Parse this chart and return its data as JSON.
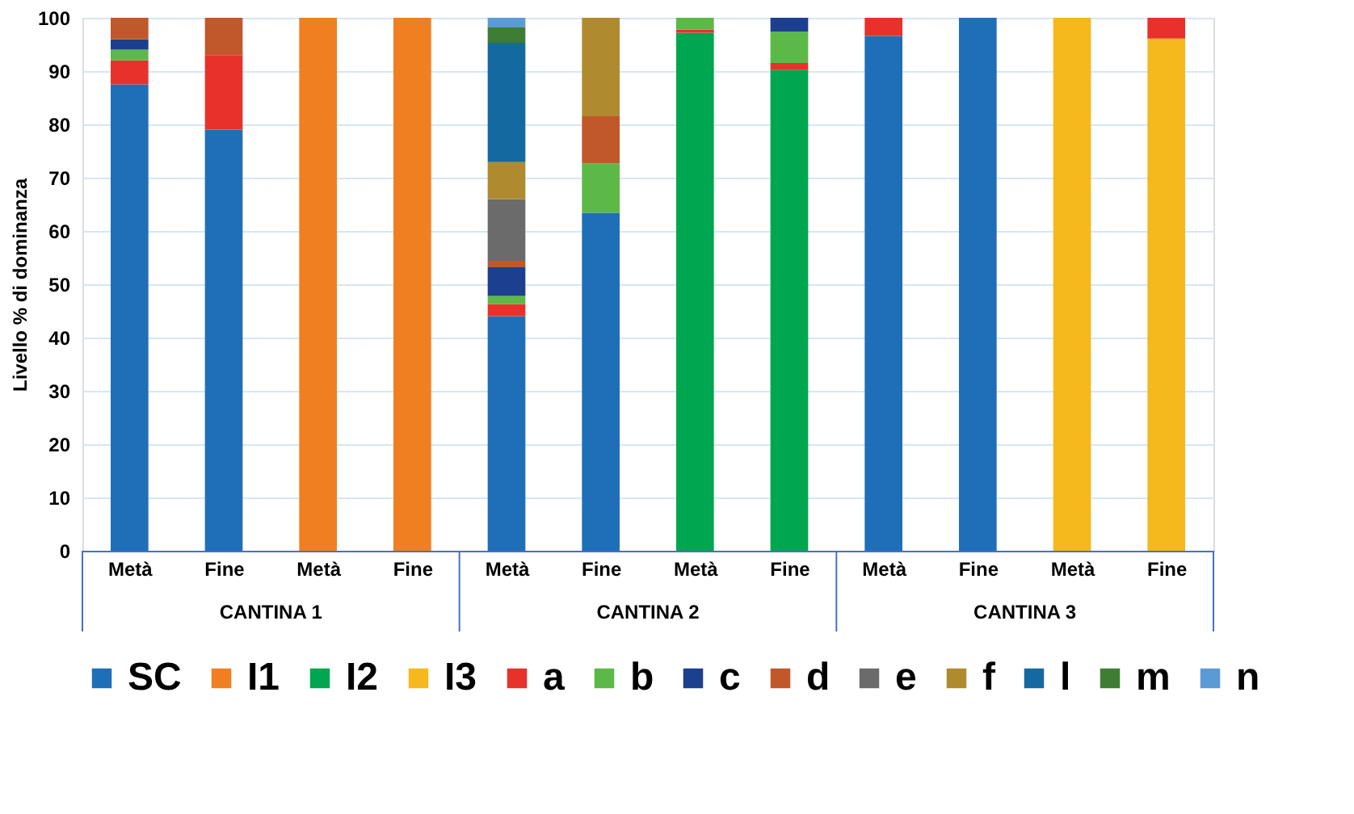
{
  "chart_data": {
    "type": "bar",
    "stacked": true,
    "ylabel": "Livello % di dominanza",
    "categories": [
      "Metà",
      "Fine",
      "Metà",
      "Fine",
      "Metà",
      "Fine",
      "Metà",
      "Fine",
      "Metà",
      "Fine",
      "Metà",
      "Fine"
    ],
    "annotations": [
      "CANTINA 1",
      "CANTINA 2",
      "CANTINA 3"
    ],
    "ylim": [
      0,
      100
    ],
    "yticks": [
      0,
      10,
      20,
      30,
      40,
      50,
      60,
      70,
      80,
      90,
      100
    ],
    "grid": "y",
    "legend": "bottom",
    "series": [
      {
        "name": "SC",
        "color": "#1f6fb8",
        "values": [
          87.5,
          79,
          null,
          null,
          44,
          63.4,
          null,
          null,
          96.6,
          100,
          null,
          null
        ]
      },
      {
        "name": "I1",
        "color": "#f07f22",
        "values": [
          null,
          null,
          100,
          100,
          null,
          null,
          null,
          null,
          null,
          null,
          null,
          null
        ]
      },
      {
        "name": "I2",
        "color": "#00a650",
        "values": [
          null,
          null,
          null,
          null,
          null,
          null,
          97.2,
          90.2,
          null,
          null,
          null,
          null
        ]
      },
      {
        "name": "I3",
        "color": "#f5b81d",
        "values": [
          null,
          null,
          null,
          null,
          null,
          null,
          null,
          null,
          null,
          null,
          100,
          96.1
        ]
      },
      {
        "name": "a",
        "color": "#e8312a",
        "values": [
          4.5,
          14,
          null,
          null,
          2.3,
          null,
          0.6,
          1.3,
          3.4,
          null,
          null,
          3.9
        ]
      },
      {
        "name": "b",
        "color": "#5cb947",
        "values": [
          2,
          null,
          null,
          null,
          1.5,
          9.3,
          2.2,
          5.9,
          null,
          null,
          null,
          null
        ]
      },
      {
        "name": "c",
        "color": "#1c3f8f",
        "values": [
          2,
          null,
          null,
          null,
          5.4,
          null,
          null,
          2.6,
          null,
          null,
          null,
          null
        ]
      },
      {
        "name": "d",
        "color": "#c0582a",
        "values": [
          4,
          7,
          null,
          null,
          1.2,
          8.8,
          null,
          null,
          null,
          null,
          null,
          null
        ]
      },
      {
        "name": "e",
        "color": "#6b6b6b",
        "values": [
          null,
          null,
          null,
          null,
          11.6,
          null,
          null,
          null,
          null,
          null,
          null,
          null
        ]
      },
      {
        "name": "f",
        "color": "#b08a2e",
        "values": [
          null,
          null,
          null,
          null,
          6.9,
          18.5,
          null,
          null,
          null,
          null,
          null,
          null
        ]
      },
      {
        "name": "l",
        "color": "#146aa0",
        "values": [
          null,
          null,
          null,
          null,
          22.4,
          null,
          null,
          null,
          null,
          null,
          null,
          null
        ]
      },
      {
        "name": "m",
        "color": "#3f7d35",
        "values": [
          null,
          null,
          null,
          null,
          2.9,
          null,
          null,
          null,
          null,
          null,
          null,
          null
        ]
      },
      {
        "name": "n",
        "color": "#5b9bd5",
        "values": [
          null,
          null,
          null,
          null,
          1.8,
          null,
          null,
          null,
          null,
          null,
          null,
          null
        ]
      }
    ]
  }
}
